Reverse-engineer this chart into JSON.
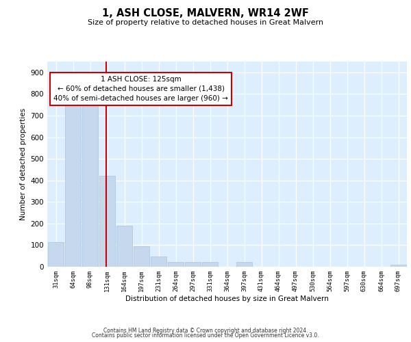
{
  "title": "1, ASH CLOSE, MALVERN, WR14 2WF",
  "subtitle": "Size of property relative to detached houses in Great Malvern",
  "xlabel": "Distribution of detached houses by size in Great Malvern",
  "ylabel": "Number of detached properties",
  "categories": [
    "31sqm",
    "64sqm",
    "98sqm",
    "131sqm",
    "164sqm",
    "197sqm",
    "231sqm",
    "264sqm",
    "297sqm",
    "331sqm",
    "364sqm",
    "397sqm",
    "431sqm",
    "464sqm",
    "497sqm",
    "530sqm",
    "564sqm",
    "597sqm",
    "630sqm",
    "664sqm",
    "697sqm"
  ],
  "values": [
    113,
    750,
    750,
    420,
    190,
    95,
    47,
    22,
    22,
    22,
    0,
    22,
    0,
    0,
    0,
    0,
    0,
    0,
    0,
    0,
    8
  ],
  "bar_color": "#c5d8ee",
  "bar_edgecolor": "#a8c4e0",
  "vline_x_index": 3,
  "vline_color": "#cc0000",
  "annotation_line1": "1 ASH CLOSE: 125sqm",
  "annotation_line2": "← 60% of detached houses are smaller (1,438)",
  "annotation_line3": "40% of semi-detached houses are larger (960) →",
  "annotation_box_color": "#ffffff",
  "annotation_box_edgecolor": "#cc0000",
  "ylim": [
    0,
    950
  ],
  "yticks": [
    0,
    100,
    200,
    300,
    400,
    500,
    600,
    700,
    800,
    900
  ],
  "footer_line1": "Contains HM Land Registry data © Crown copyright and database right 2024.",
  "footer_line2": "Contains public sector information licensed under the Open Government Licence v3.0.",
  "fig_bg_color": "#ffffff",
  "plot_bg_color": "#ddeeff"
}
